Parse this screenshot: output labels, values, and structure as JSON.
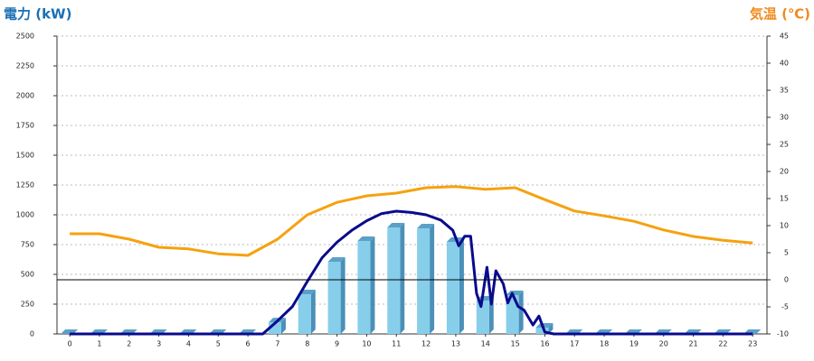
{
  "chart_data": {
    "type": "combo",
    "y_label": "電力 (kW)",
    "y2_label": "気温 (℃)",
    "y_label_color": "#1a6fb4",
    "y2_label_color": "#f08a1c",
    "xlim": [
      -0.43,
      23.48
    ],
    "xticks": [
      0,
      1,
      2,
      3,
      4,
      5,
      6,
      7,
      8,
      9,
      10,
      11,
      12,
      13,
      14,
      15,
      16,
      17,
      18,
      19,
      20,
      21,
      22,
      23
    ],
    "ylim": [
      0,
      2500
    ],
    "yticks": [
      0,
      250,
      500,
      750,
      1000,
      1250,
      1500,
      1750,
      2000,
      2250,
      2500
    ],
    "y2lim": [
      -10,
      45
    ],
    "y2ticks": [
      -10,
      -5,
      0,
      5,
      10,
      15,
      20,
      25,
      30,
      35,
      40,
      45
    ],
    "y2_refline": 0,
    "grid": true,
    "series": [
      {
        "type": "bar",
        "color": "#87ceeb",
        "x": [
          0,
          1,
          2,
          3,
          4,
          5,
          6,
          7,
          8,
          9,
          10,
          11,
          12,
          13,
          14,
          15,
          16,
          17,
          18,
          19,
          20,
          21,
          22,
          23
        ],
        "values": [
          0,
          0,
          0,
          0,
          0,
          0,
          0,
          98,
          333,
          606,
          780,
          894,
          886,
          773,
          280,
          326,
          53,
          0,
          0,
          0,
          0,
          0,
          0,
          0
        ]
      },
      {
        "type": "line",
        "color": "#0a0a8c",
        "x": [
          0,
          6.5,
          7,
          7.5,
          8,
          8.5,
          9,
          9.5,
          10,
          10.5,
          11,
          11.5,
          12,
          12.5,
          12.9,
          13.1,
          13.3,
          13.5,
          13.7,
          13.85,
          14.05,
          14.2,
          14.35,
          14.6,
          14.75,
          14.9,
          15.1,
          15.3,
          15.6,
          15.8,
          16,
          16.3,
          23
        ],
        "values": [
          0,
          0,
          110,
          230,
          440,
          640,
          770,
          870,
          950,
          1010,
          1030,
          1020,
          1000,
          955,
          870,
          740,
          820,
          820,
          340,
          230,
          560,
          250,
          530,
          420,
          260,
          340,
          230,
          200,
          75,
          150,
          15,
          0,
          0
        ]
      },
      {
        "type": "line",
        "axis": "y2",
        "color": "#f5a20f",
        "x": [
          0,
          1,
          2,
          3,
          4,
          5,
          6,
          7,
          8,
          9,
          10,
          11,
          12,
          13,
          14,
          15,
          16,
          17,
          18,
          19,
          20,
          21,
          22,
          23
        ],
        "values": [
          8.5,
          8.5,
          7.5,
          6,
          5.7,
          4.8,
          4.5,
          7.5,
          12,
          14.3,
          15.5,
          16,
          17,
          17.2,
          16.7,
          17,
          14.8,
          12.7,
          11.8,
          10.8,
          9.2,
          8,
          7.3,
          6.8
        ]
      }
    ]
  }
}
